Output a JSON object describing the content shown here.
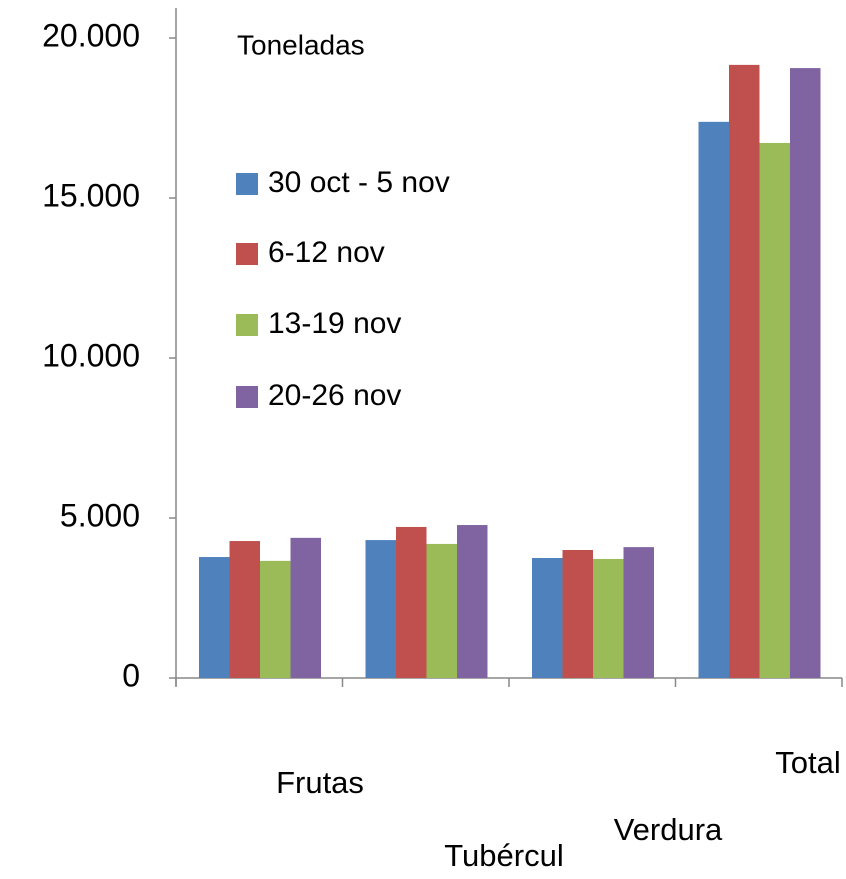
{
  "chart_data": {
    "type": "bar",
    "title": "Toneladas",
    "categories": [
      "Frutas",
      "Tubércul",
      "Verdura",
      "Total"
    ],
    "series": [
      {
        "name": "30 oct - 5 nov",
        "color": "#4f81bd",
        "values": [
          3780,
          4310,
          3750,
          17380
        ]
      },
      {
        "name": "6-12 nov",
        "color": "#c0504d",
        "values": [
          4280,
          4720,
          4000,
          19160
        ]
      },
      {
        "name": "13-19 nov",
        "color": "#9bbb59",
        "values": [
          3660,
          4190,
          3720,
          16720
        ]
      },
      {
        "name": "20-26 nov",
        "color": "#8064a2",
        "values": [
          4380,
          4780,
          4090,
          19060
        ]
      }
    ],
    "ylim": [
      0,
      20000
    ],
    "yticks": [
      0,
      {
        "value": 5000,
        "label": "5.000"
      },
      {
        "value": 10000,
        "label": "10.000"
      },
      {
        "value": 15000,
        "label": "15.000"
      },
      {
        "value": 20000,
        "label": "20.000"
      }
    ],
    "grid": false
  }
}
